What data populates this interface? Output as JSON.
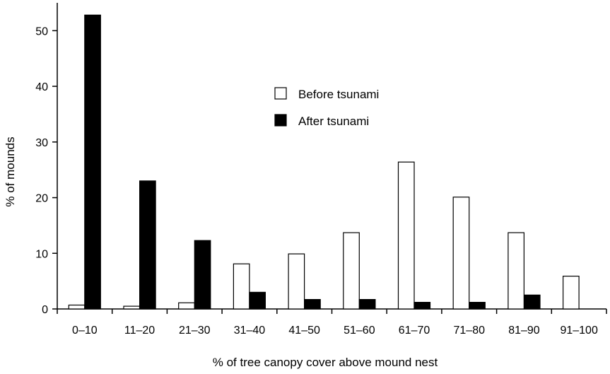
{
  "chart_data": {
    "type": "bar",
    "title": "",
    "xlabel": "% of tree canopy cover above mound nest",
    "ylabel": "% of mounds",
    "ylim": [
      0,
      55
    ],
    "yticks": [
      0,
      10,
      20,
      30,
      40,
      50
    ],
    "categories": [
      "0–10",
      "11–20",
      "21–30",
      "31–40",
      "41–50",
      "51–60",
      "61–70",
      "71–80",
      "81–90",
      "91–100"
    ],
    "series": [
      {
        "name": "Before tsunami",
        "fill": "#ffffff",
        "values": [
          0.7,
          0.5,
          1.1,
          8.1,
          9.9,
          13.7,
          26.4,
          20.1,
          13.7,
          5.9
        ]
      },
      {
        "name": "After tsunami",
        "fill": "#000000",
        "values": [
          52.8,
          23.0,
          12.3,
          3.0,
          1.7,
          1.7,
          1.2,
          1.2,
          2.5,
          0
        ]
      }
    ],
    "grid": false,
    "legend_position": "top-center"
  }
}
